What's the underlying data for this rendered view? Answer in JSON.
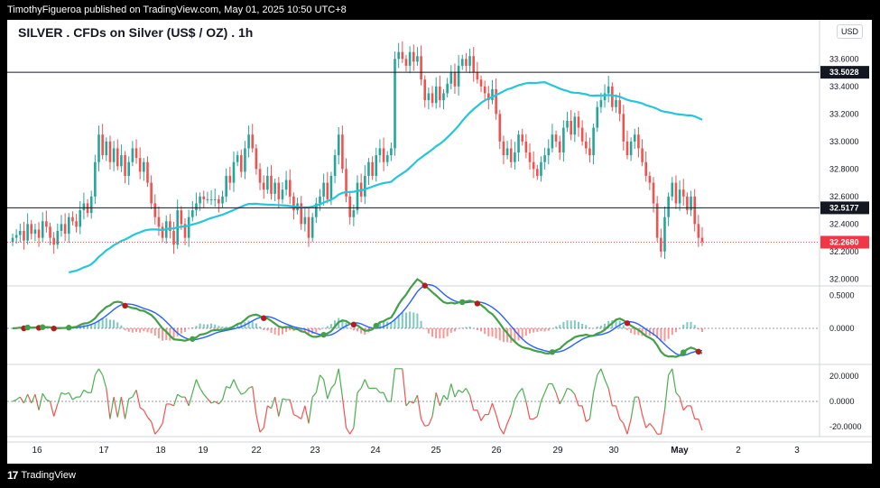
{
  "header": {
    "published_by": "TimothyFigueroa published on TradingView.com, May 01, 2025 10:50 UTC+8"
  },
  "footer": {
    "brand": "TradingView",
    "logo_glyph": "17"
  },
  "chart_data": {
    "type": "candlestick",
    "title": "SILVER . CFDs on Silver (US$ / OZ) . 1h",
    "currency": "USD",
    "x_ticks": [
      "16",
      "17",
      "18",
      "19",
      "22",
      "23",
      "24",
      "25",
      "26",
      "29",
      "30",
      "May",
      "2",
      "3"
    ],
    "price_axis": {
      "ylim": [
        31.95,
        33.72
      ],
      "ticks": [
        "33.6000",
        "33.4000",
        "33.2000",
        "33.0000",
        "32.8000",
        "32.6000",
        "32.4000",
        "32.2000",
        "32.0000"
      ],
      "tick_values": [
        33.6,
        33.4,
        33.2,
        33.0,
        32.8,
        32.6,
        32.4,
        32.2,
        32.0
      ],
      "levels": [
        {
          "label": "33.5028",
          "value": 33.5028,
          "style": "line"
        },
        {
          "label": "32.5177",
          "value": 32.5177,
          "style": "line"
        },
        {
          "label": "32.2680",
          "value": 32.268,
          "style": "current"
        }
      ]
    },
    "candles_close": [
      32.3,
      32.32,
      32.35,
      32.28,
      32.4,
      32.33,
      32.36,
      32.3,
      32.42,
      32.38,
      32.3,
      32.25,
      32.35,
      32.4,
      32.33,
      32.45,
      32.42,
      32.38,
      32.5,
      32.55,
      32.48,
      32.6,
      32.85,
      33.05,
      32.9,
      33.0,
      32.85,
      32.95,
      32.82,
      32.9,
      32.75,
      32.85,
      32.95,
      32.88,
      32.78,
      32.85,
      32.7,
      32.55,
      32.45,
      32.38,
      32.3,
      32.42,
      32.35,
      32.25,
      32.5,
      32.4,
      32.3,
      32.45,
      32.5,
      32.55,
      32.6,
      32.58,
      32.58,
      32.58,
      32.58,
      32.55,
      32.6,
      32.75,
      32.7,
      32.85,
      32.9,
      32.78,
      32.95,
      33.05,
      32.95,
      32.8,
      32.7,
      32.65,
      32.75,
      32.62,
      32.7,
      32.58,
      32.65,
      32.72,
      32.6,
      32.5,
      32.55,
      32.4,
      32.45,
      32.3,
      32.45,
      32.55,
      32.6,
      32.7,
      32.58,
      32.75,
      32.9,
      33.05,
      32.8,
      32.6,
      32.45,
      32.5,
      32.7,
      32.6,
      32.75,
      32.85,
      32.75,
      32.9,
      32.95,
      32.85,
      32.9,
      32.95,
      33.6,
      33.65,
      33.6,
      33.55,
      33.65,
      33.58,
      33.62,
      33.45,
      33.3,
      33.35,
      33.28,
      33.4,
      33.3,
      33.35,
      33.42,
      33.5,
      33.4,
      33.55,
      33.6,
      33.55,
      33.62,
      33.5,
      33.45,
      33.4,
      33.35,
      33.3,
      33.38,
      33.2,
      33.0,
      32.9,
      32.95,
      32.85,
      32.92,
      33.05,
      33.0,
      32.92,
      32.85,
      32.8,
      32.75,
      32.85,
      32.9,
      32.95,
      33.05,
      33.0,
      32.92,
      33.1,
      33.15,
      33.05,
      33.18,
      33.1,
      33.0,
      32.95,
      32.9,
      33.1,
      33.25,
      33.3,
      33.35,
      33.4,
      33.25,
      33.3,
      33.2,
      33.0,
      32.9,
      33.0,
      33.05,
      32.95,
      32.85,
      32.75,
      32.7,
      32.55,
      32.3,
      32.2,
      32.45,
      32.6,
      32.7,
      32.55,
      32.65,
      32.6,
      32.5,
      32.6,
      32.4,
      32.3,
      32.27
    ],
    "series": [
      {
        "name": "MA",
        "color": "#26c6da"
      },
      {
        "name": "Oscillator",
        "ylim": [
          -0.55,
          0.62
        ],
        "ticks": [
          "0.5000",
          "0.0000"
        ],
        "tick_values": [
          0.5,
          0.0
        ],
        "colors": [
          "#43a047",
          "#b71c1c",
          "#2962ff"
        ]
      },
      {
        "name": "Momentum",
        "ylim": [
          -28,
          28
        ],
        "ticks": [
          "20.0000",
          "0.0000",
          "-20.0000"
        ],
        "tick_values": [
          20,
          0,
          -20
        ],
        "colors": [
          "#4caf50",
          "#ef5350"
        ]
      }
    ]
  }
}
